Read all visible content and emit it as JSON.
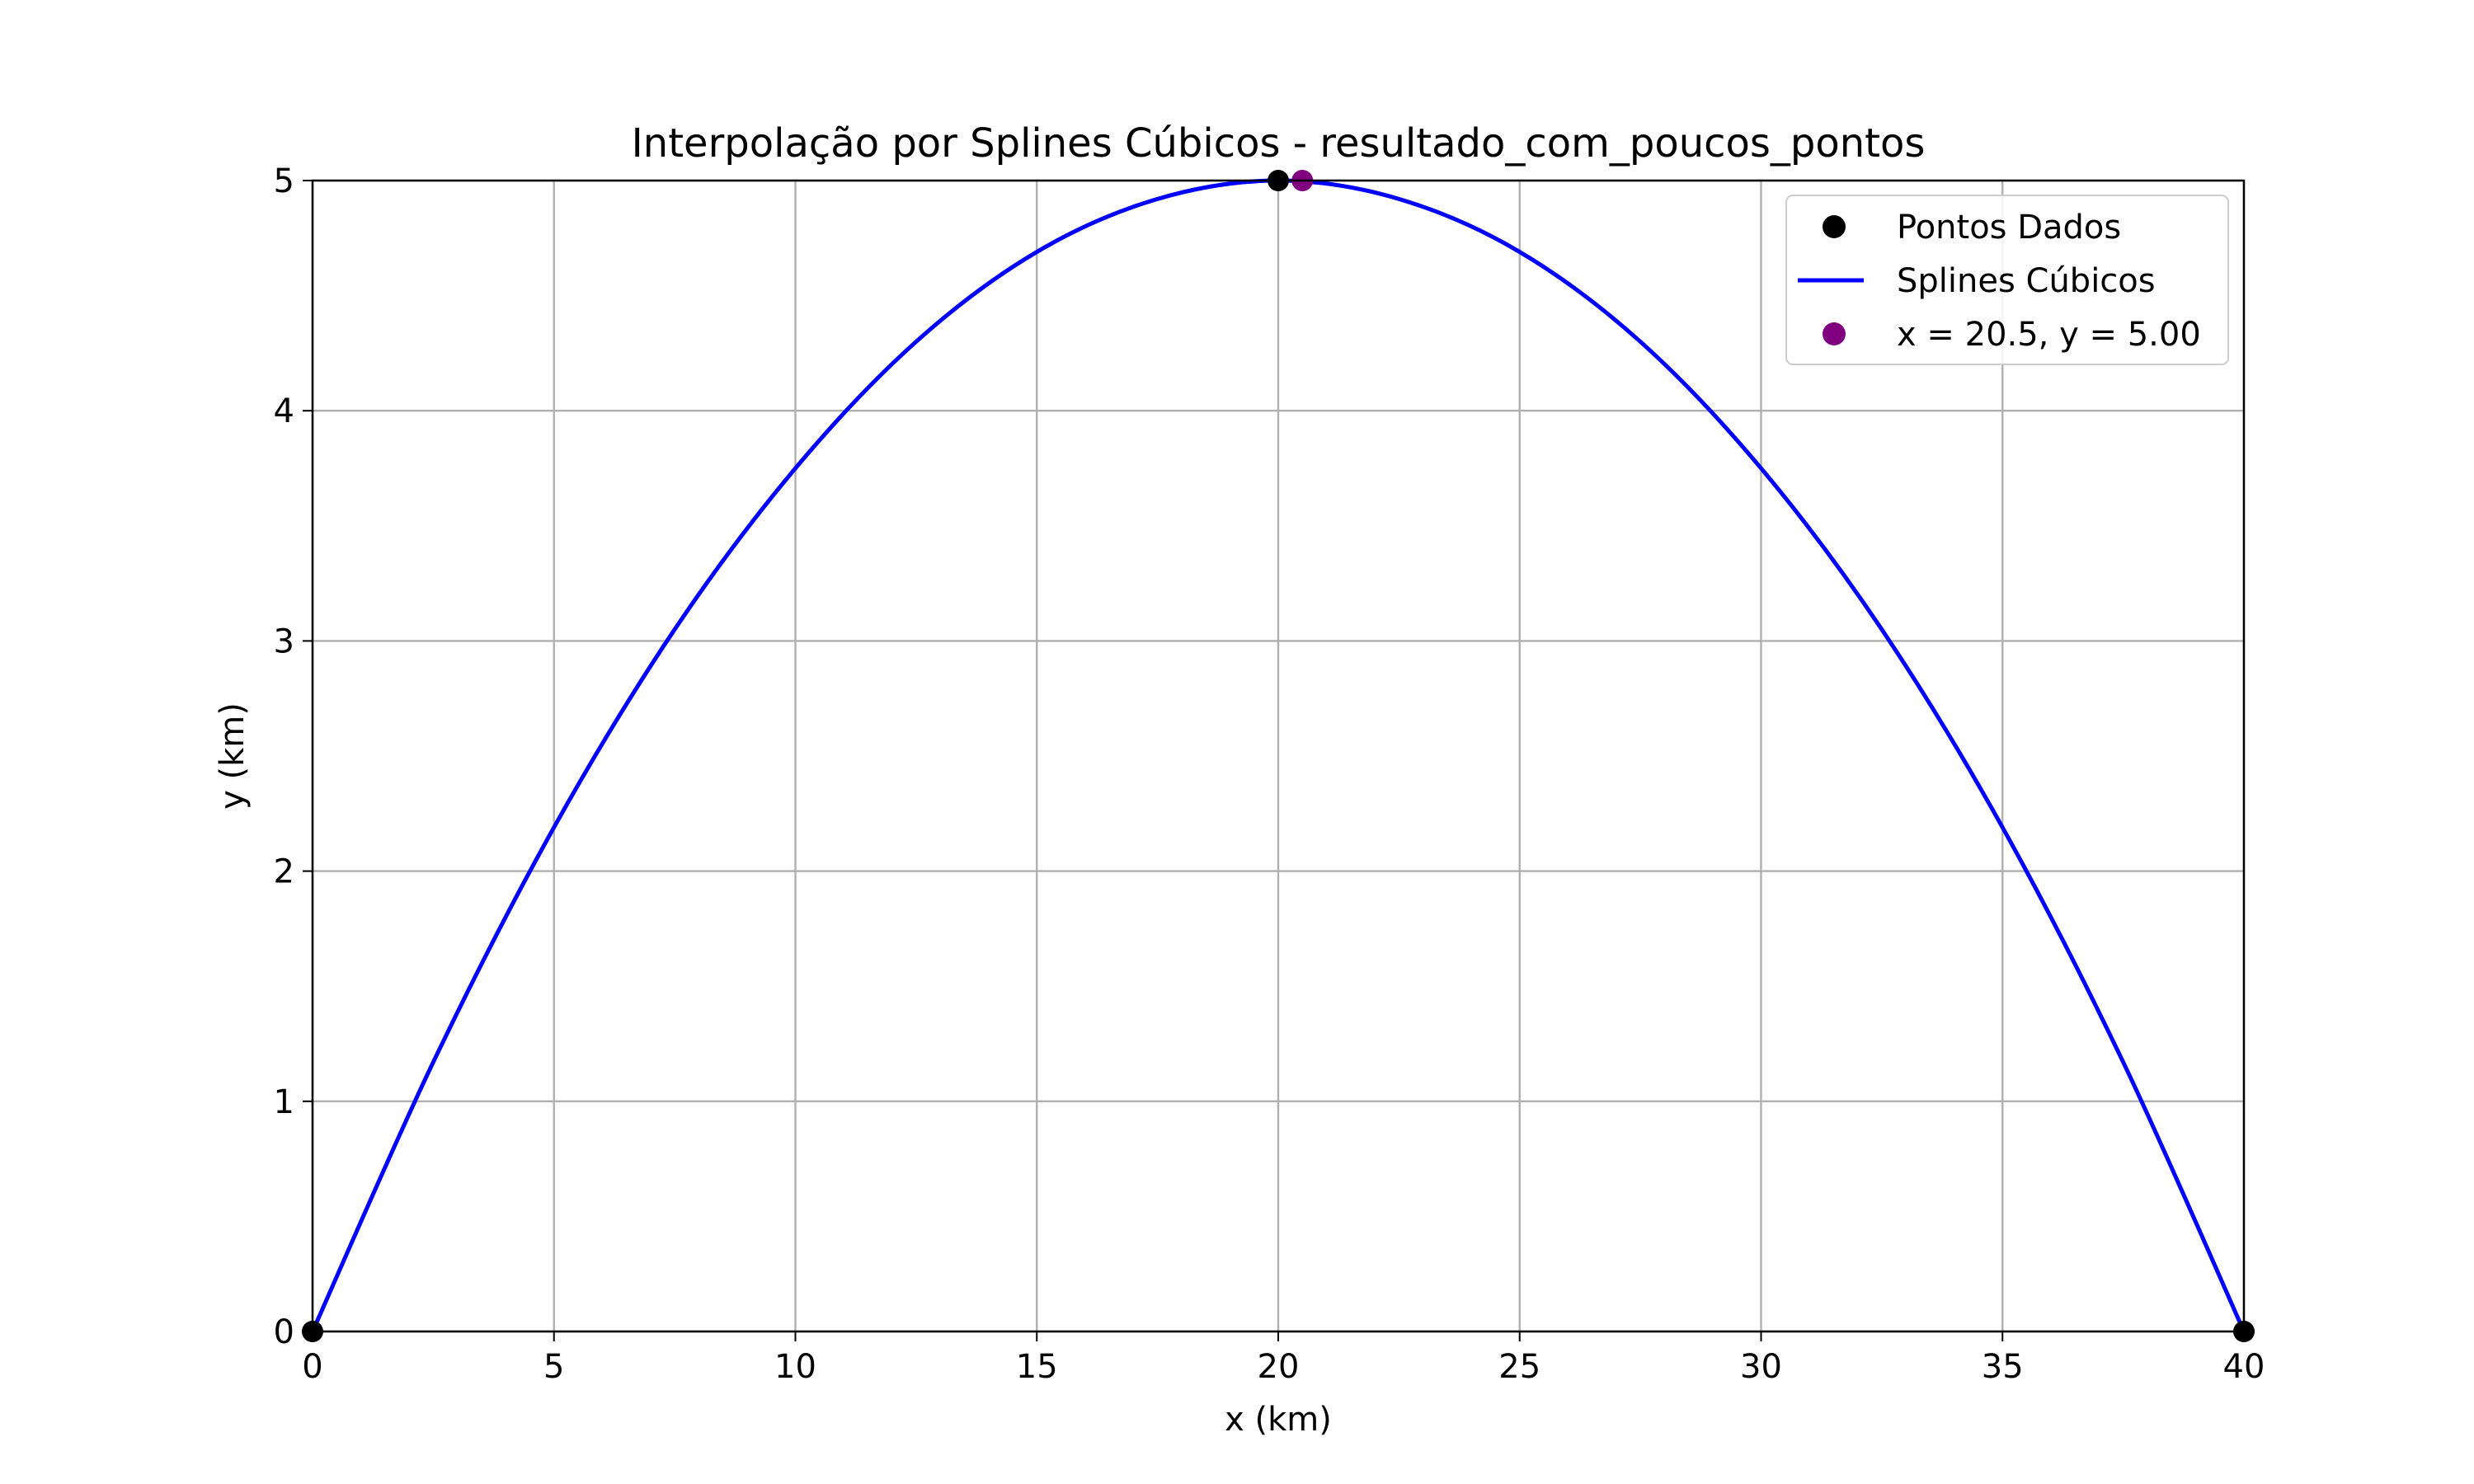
{
  "chart_data": {
    "type": "line",
    "title": "Interpolação por Splines Cúbicos - resultado_com_poucos_pontos",
    "xlabel": "x (km)",
    "ylabel": "y (km)",
    "xlim": [
      0,
      40
    ],
    "ylim": [
      0,
      5
    ],
    "xticks": [
      0,
      5,
      10,
      15,
      20,
      25,
      30,
      35,
      40
    ],
    "yticks": [
      0,
      1,
      2,
      3,
      4,
      5
    ],
    "grid": true,
    "legend_position": "top-right",
    "series": [
      {
        "name": "Pontos Dados",
        "kind": "scatter",
        "color": "#000000",
        "points": [
          [
            0,
            0
          ],
          [
            20,
            5
          ],
          [
            40,
            0
          ]
        ]
      },
      {
        "name": "Splines Cúbicos",
        "kind": "line",
        "color": "#0000ff",
        "points": [
          [
            0,
            0
          ],
          [
            2.5,
            1.17
          ],
          [
            5,
            2.19
          ],
          [
            7.5,
            3.05
          ],
          [
            10,
            3.75
          ],
          [
            12.5,
            4.3
          ],
          [
            15,
            4.69
          ],
          [
            17.5,
            4.92
          ],
          [
            20,
            5.0
          ],
          [
            22.5,
            4.92
          ],
          [
            25,
            4.69
          ],
          [
            27.5,
            4.3
          ],
          [
            30,
            3.75
          ],
          [
            32.5,
            3.05
          ],
          [
            35,
            2.19
          ],
          [
            37.5,
            1.17
          ],
          [
            40,
            0
          ]
        ]
      },
      {
        "name": "x = 20.5, y = 5.00",
        "kind": "scatter",
        "color": "#800080",
        "points": [
          [
            20.5,
            5.0
          ]
        ]
      }
    ]
  }
}
